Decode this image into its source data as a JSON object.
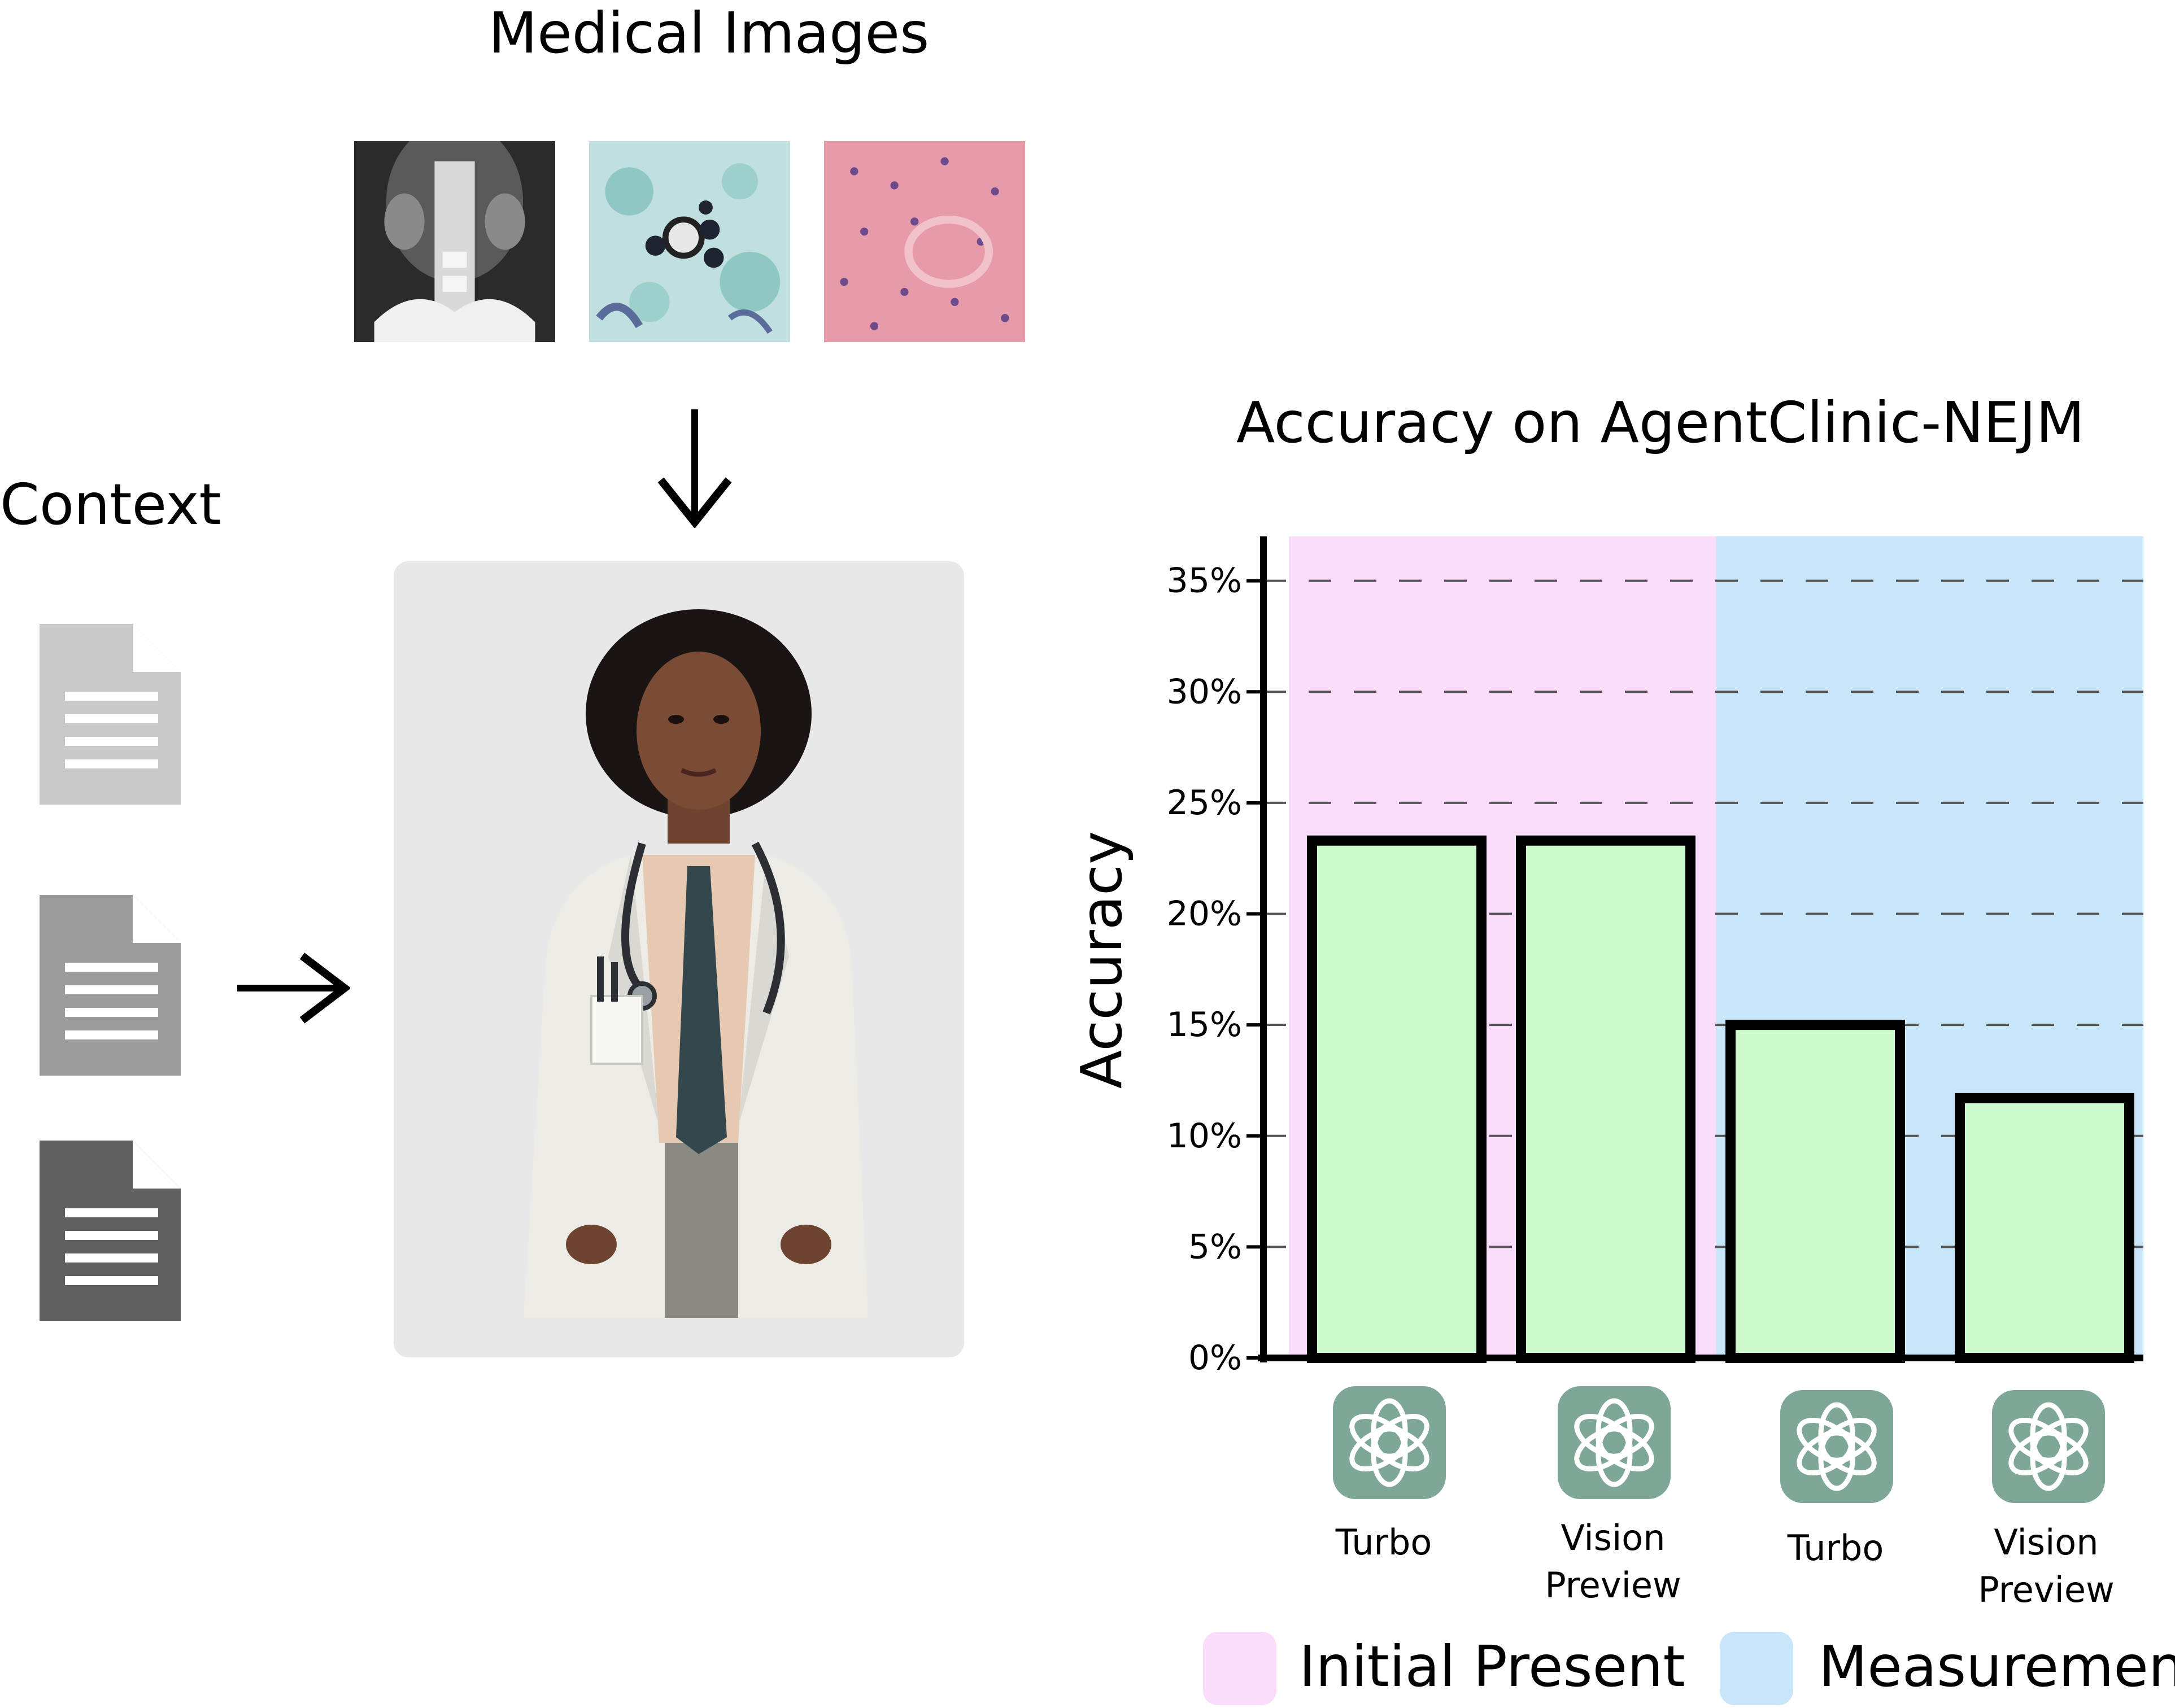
{
  "figure": {
    "medical_images_label": "Medical Images",
    "context_label": "Context",
    "medical_image_icons": [
      "ct-scan-icon",
      "microscopy-stain-icon",
      "histology-icon"
    ],
    "document_icons": [
      "document-icon",
      "document-icon",
      "document-icon"
    ],
    "doctor_icon": "doctor-illustration-icon"
  },
  "chart_data": {
    "type": "bar",
    "title": "Accuracy on AgentClinic-NEJM",
    "ylabel": "Accuracy",
    "xlabel": "",
    "ylim": [
      0,
      37
    ],
    "yticks": [
      "0%",
      "5%",
      "10%",
      "15%",
      "20%",
      "25%",
      "30%",
      "35%"
    ],
    "ytick_values": [
      0,
      5,
      10,
      15,
      20,
      25,
      30,
      35
    ],
    "grid": "dashed-horizontal",
    "categories": [
      "Turbo",
      "Vision Preview",
      "Turbo",
      "Vision Preview"
    ],
    "values": [
      23.3,
      23.3,
      15.0,
      11.7
    ],
    "category_icons": [
      "openai-logo-icon",
      "openai-logo-icon",
      "openai-logo-icon",
      "openai-logo-icon"
    ],
    "groups": [
      {
        "name": "Initial Present",
        "color": "#fbdcfa",
        "categories": [
          0,
          1
        ]
      },
      {
        "name": "Measurement",
        "color": "#c8e6fa",
        "categories": [
          2,
          3
        ]
      }
    ],
    "bar_color": "#ccfacc",
    "legend_position": "bottom"
  }
}
